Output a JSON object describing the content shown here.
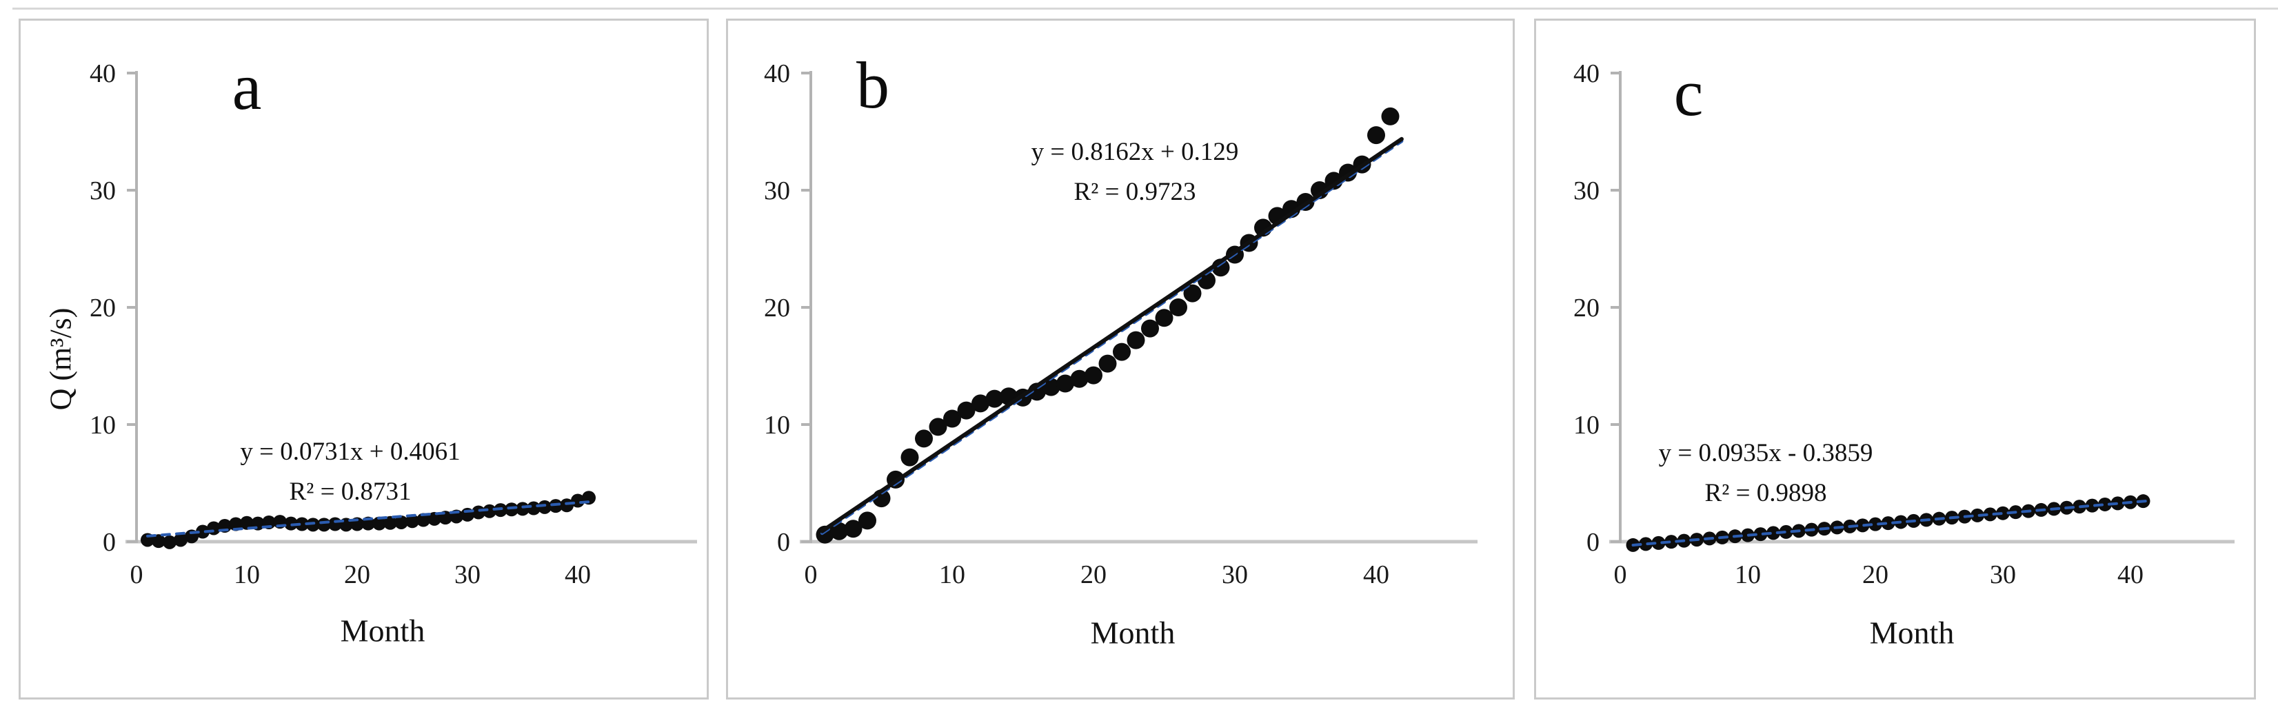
{
  "style": {
    "dot_color": "#0d0d0d",
    "trend_blue": "#2b5cb0",
    "trend_black": "#101010",
    "y_axis_color": "#b3b3b3",
    "x_axis_color": "#c6c6c6",
    "tick_label_color": "#1a1a1a",
    "panel_border_color": "#cacaca",
    "top_rule_color": "#d8d8d8"
  },
  "chart_data": [
    {
      "id": "a",
      "type": "scatter",
      "panel_label": "a",
      "xlabel": "Month",
      "ylabel": "Q (m³/s)",
      "xlim": [
        0,
        45
      ],
      "ylim": [
        0,
        40
      ],
      "xticks": [
        0,
        10,
        20,
        30,
        40
      ],
      "yticks": [
        0,
        10,
        20,
        30,
        40
      ],
      "annotation": {
        "equation": "y = 0.0731x + 0.4061",
        "r2": "R² = 0.8731"
      },
      "trendlines": [
        {
          "slope": 0.0731,
          "intercept": 0.4061,
          "x_range": [
            1,
            41.5
          ],
          "color_key": "trend_blue",
          "dash": "11 10",
          "width": 4,
          "offset_y": 0
        }
      ],
      "x": [
        1,
        2,
        3,
        4,
        5,
        6,
        7,
        8,
        9,
        10,
        11,
        12,
        13,
        14,
        15,
        16,
        17,
        18,
        19,
        20,
        21,
        22,
        23,
        24,
        25,
        26,
        27,
        28,
        29,
        30,
        31,
        32,
        33,
        34,
        35,
        36,
        37,
        38,
        39,
        40,
        41
      ],
      "y": [
        0.15,
        0.05,
        -0.05,
        0.15,
        0.45,
        0.85,
        1.15,
        1.35,
        1.5,
        1.6,
        1.55,
        1.65,
        1.7,
        1.55,
        1.5,
        1.45,
        1.45,
        1.5,
        1.45,
        1.5,
        1.55,
        1.55,
        1.6,
        1.65,
        1.75,
        1.85,
        1.95,
        2.05,
        2.15,
        2.3,
        2.5,
        2.6,
        2.7,
        2.75,
        2.8,
        2.85,
        2.95,
        3.05,
        3.1,
        3.5,
        3.75
      ]
    },
    {
      "id": "b",
      "type": "scatter",
      "panel_label": "b",
      "xlabel": "Month",
      "ylabel": "",
      "xlim": [
        0,
        45
      ],
      "ylim": [
        0,
        40
      ],
      "xticks": [
        0,
        10,
        20,
        30,
        40
      ],
      "yticks": [
        0,
        10,
        20,
        30,
        40
      ],
      "annotation": {
        "equation": "y = 0.8162x + 0.129",
        "r2": "R² = 0.9723"
      },
      "trendlines": [
        {
          "slope": 0.8162,
          "intercept": 0.129,
          "x_range": [
            0.8,
            41.8
          ],
          "color_key": "trend_blue",
          "dash": "11 10",
          "width": 5,
          "offset_y": 1
        },
        {
          "slope": 0.8162,
          "intercept": 0.129,
          "x_range": [
            0.8,
            41.8
          ],
          "color_key": "trend_black",
          "dash": "",
          "width": 6,
          "offset_y": -2
        }
      ],
      "x": [
        1,
        2,
        3,
        4,
        5,
        6,
        7,
        8,
        9,
        10,
        11,
        12,
        13,
        14,
        15,
        16,
        17,
        18,
        19,
        20,
        21,
        22,
        23,
        24,
        25,
        26,
        27,
        28,
        29,
        30,
        31,
        32,
        33,
        34,
        35,
        36,
        37,
        38,
        39,
        40,
        41
      ],
      "y": [
        0.6,
        0.9,
        1.1,
        1.8,
        3.7,
        5.3,
        7.2,
        8.8,
        9.8,
        10.5,
        11.2,
        11.8,
        12.2,
        12.4,
        12.3,
        12.8,
        13.2,
        13.5,
        13.9,
        14.2,
        15.2,
        16.2,
        17.2,
        18.2,
        19.1,
        20.0,
        21.2,
        22.3,
        23.4,
        24.5,
        25.5,
        26.8,
        27.8,
        28.4,
        29.0,
        30.0,
        30.8,
        31.5,
        32.2,
        34.7,
        36.3
      ]
    },
    {
      "id": "c",
      "type": "scatter",
      "panel_label": "c",
      "xlabel": "Month",
      "ylabel": "",
      "xlim": [
        0,
        45
      ],
      "ylim": [
        0,
        40
      ],
      "xticks": [
        0,
        10,
        20,
        30,
        40
      ],
      "yticks": [
        0,
        10,
        20,
        30,
        40
      ],
      "annotation": {
        "equation": "y = 0.0935x - 0.3859",
        "r2": "R² = 0.9898"
      },
      "trendlines": [
        {
          "slope": 0.0935,
          "intercept": -0.3859,
          "x_range": [
            1,
            41.5
          ],
          "color_key": "trend_blue",
          "dash": "11 10",
          "width": 4,
          "offset_y": 0
        }
      ],
      "x": [
        1,
        2,
        3,
        4,
        5,
        6,
        7,
        8,
        9,
        10,
        11,
        12,
        13,
        14,
        15,
        16,
        17,
        18,
        19,
        20,
        21,
        22,
        23,
        24,
        25,
        26,
        27,
        28,
        29,
        30,
        31,
        32,
        33,
        34,
        35,
        36,
        37,
        38,
        39,
        40,
        41
      ],
      "y": [
        -0.29,
        -0.2,
        -0.11,
        -0.01,
        0.08,
        0.17,
        0.27,
        0.36,
        0.46,
        0.55,
        0.64,
        0.74,
        0.83,
        0.92,
        1.02,
        1.11,
        1.21,
        1.3,
        1.39,
        1.49,
        1.58,
        1.68,
        1.77,
        1.86,
        1.96,
        2.05,
        2.14,
        2.24,
        2.33,
        2.43,
        2.52,
        2.61,
        2.71,
        2.8,
        2.9,
        2.99,
        3.08,
        3.18,
        3.27,
        3.37,
        3.46
      ]
    }
  ]
}
